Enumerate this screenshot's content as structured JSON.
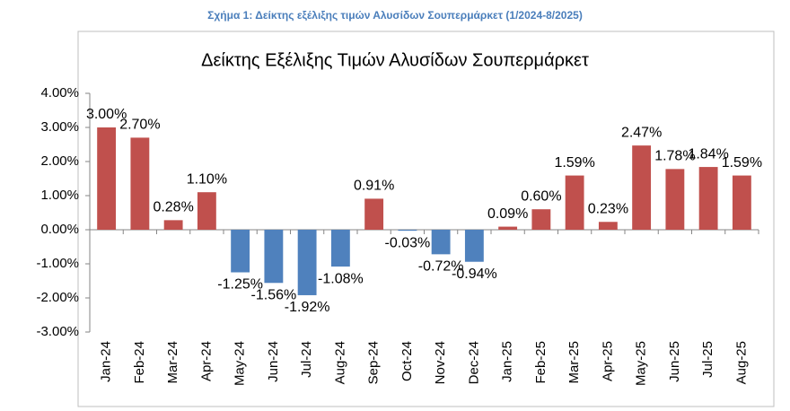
{
  "caption": "Σχήμα 1: Δείκτης εξέλιξης τιμών Αλυσίδων Σουπερμάρκετ (1/2024-8/2025)",
  "chart_data": {
    "type": "bar",
    "title": "Δείκτης Εξέλιξης Τιμών Αλυσίδων Σουπερμάρκετ",
    "categories": [
      "Jan-24",
      "Feb-24",
      "Mar-24",
      "Apr-24",
      "May-24",
      "Jun-24",
      "Jul-24",
      "Aug-24",
      "Sep-24",
      "Oct-24",
      "Nov-24",
      "Dec-24",
      "Jan-25",
      "Feb-25",
      "Mar-25",
      "Apr-25",
      "May-25",
      "Jun-25",
      "Jul-25",
      "Aug-25"
    ],
    "values": [
      3.0,
      2.7,
      0.28,
      1.1,
      -1.25,
      -1.56,
      -1.92,
      -1.08,
      0.91,
      -0.03,
      -0.72,
      -0.94,
      0.09,
      0.6,
      1.59,
      0.23,
      2.47,
      1.78,
      1.84,
      1.59
    ],
    "value_labels": [
      "3.00%",
      "2.70%",
      "0.28%",
      "1.10%",
      "-1.25%",
      "-1.56%",
      "-1.92%",
      "-1.08%",
      "0.91%",
      "-0.03%",
      "-0.72%",
      "-0.94%",
      "0.09%",
      "0.60%",
      "1.59%",
      "0.23%",
      "2.47%",
      "1.78%",
      "1.84%",
      "1.59%"
    ],
    "positive_color": "#c0504d",
    "negative_color": "#4f81bd",
    "ylim": [
      -3,
      4
    ],
    "yticks": [
      {
        "value": 4,
        "label": "4.00%"
      },
      {
        "value": 3,
        "label": "3.00%"
      },
      {
        "value": 2,
        "label": "2.00%"
      },
      {
        "value": 1,
        "label": "1.00%"
      },
      {
        "value": 0,
        "label": "0.00%"
      },
      {
        "value": -1,
        "label": "-1.00%"
      },
      {
        "value": -2,
        "label": "-2.00%"
      },
      {
        "value": -3,
        "label": "-3.00%"
      }
    ],
    "grid": false
  }
}
